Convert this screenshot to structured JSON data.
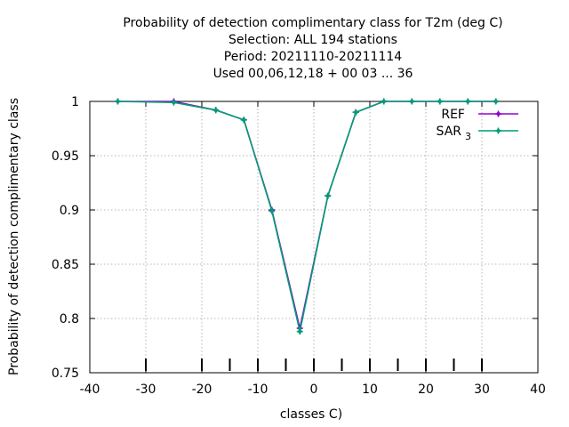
{
  "chart_data": {
    "type": "line",
    "title_lines": [
      "Probability of detection complimentary class  for T2m (deg C)",
      "Selection: ALL    194 stations",
      "Period: 20211110-20211114",
      "Used  00,06,12,18 + 00 03 ... 36"
    ],
    "xlabel": "classes C)",
    "ylabel": "Probability of detection complimentary class",
    "xlim": [
      -40,
      40
    ],
    "ylim": [
      0.75,
      1.0
    ],
    "xticks": [
      -40,
      -30,
      -20,
      -10,
      0,
      10,
      20,
      30,
      40
    ],
    "yticks": [
      0.75,
      0.8,
      0.85,
      0.9,
      0.95,
      1.0
    ],
    "ytick_labels": [
      "0.75",
      "0.8",
      "0.85",
      "0.9",
      "0.95",
      "1"
    ],
    "grid": true,
    "legend_position": "top-right",
    "class_marks": [
      -30,
      -20,
      -15,
      -10,
      -5,
      0,
      5,
      10,
      15,
      20,
      25,
      30
    ],
    "series": [
      {
        "name": "REF",
        "color": "#9400d3",
        "x": [
          -35,
          -25,
          -17.5,
          -12.5,
          -7.5,
          -2.5,
          2.5,
          7.5,
          12.5,
          17.5,
          22.5,
          27.5,
          32.5
        ],
        "values": [
          1.0,
          1.0,
          0.992,
          0.983,
          0.9,
          0.791,
          0.913,
          0.99,
          1.0,
          1.0,
          1.0,
          1.0,
          1.0
        ]
      },
      {
        "name": "SAR",
        "name_subscript": "3",
        "color": "#009e73",
        "x": [
          -35,
          -25,
          -17.5,
          -12.5,
          -7.5,
          -2.5,
          2.5,
          7.5,
          12.5,
          17.5,
          22.5,
          27.5,
          32.5
        ],
        "values": [
          1.0,
          0.999,
          0.992,
          0.983,
          0.899,
          0.788,
          0.913,
          0.99,
          1.0,
          1.0,
          1.0,
          1.0,
          1.0
        ]
      }
    ]
  }
}
